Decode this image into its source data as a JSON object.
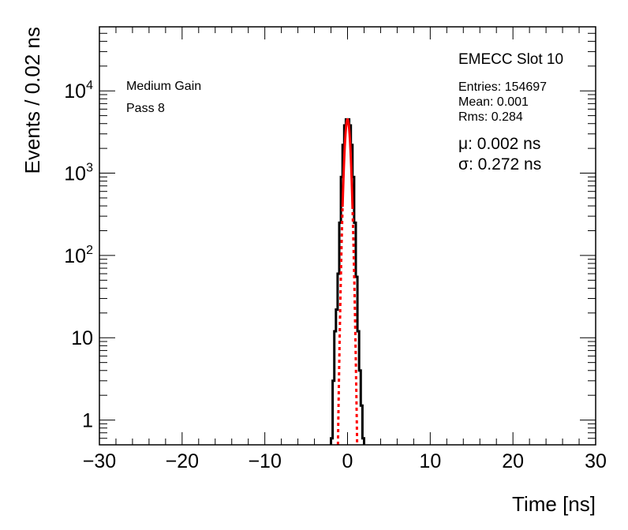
{
  "chart_data": {
    "type": "histogram",
    "xlabel": "Time [ns]",
    "ylabel": "Events / 0.02 ns",
    "xlim": [
      -30,
      30
    ],
    "ylim": [
      0.5,
      60000
    ],
    "yscale": "log",
    "x_ticks": [
      -30,
      -20,
      -10,
      0,
      10,
      20,
      30
    ],
    "x_tick_labels": [
      "−30",
      "−20",
      "−10",
      "0",
      "10",
      "20",
      "30"
    ],
    "y_ticks": [
      1,
      10,
      100,
      1000,
      10000
    ],
    "y_tick_labels": [
      {
        "base": "1",
        "exp": ""
      },
      {
        "base": "10",
        "exp": ""
      },
      {
        "base": "10",
        "exp": "2"
      },
      {
        "base": "10",
        "exp": "3"
      },
      {
        "base": "10",
        "exp": "4"
      }
    ],
    "grid": false,
    "annotations": {
      "left": [
        "Medium Gain",
        "Pass 8"
      ],
      "title": "EMECC Slot 10",
      "stats": [
        "Entries: 154697",
        "Mean: 0.001",
        "Rms: 0.284"
      ],
      "fit": [
        "μ: 0.002 ns",
        "σ: 0.272 ns"
      ]
    },
    "histogram": {
      "name": "data",
      "color": "#000000",
      "x": [
        -1.9,
        -1.7,
        -1.5,
        -1.3,
        -1.1,
        -0.9,
        -0.7,
        -0.5,
        -0.3,
        -0.1,
        0.1,
        0.3,
        0.5,
        0.7,
        0.9,
        1.1,
        1.3,
        1.5,
        1.7,
        1.9
      ],
      "y": [
        0.6,
        3,
        12,
        22,
        60,
        250,
        900,
        2200,
        3800,
        4500,
        4500,
        3800,
        2200,
        900,
        250,
        55,
        12,
        4,
        1.5,
        0.6
      ]
    },
    "fit_curve": {
      "name": "gaussian fit",
      "color": "#ff0000",
      "mean": 0.002,
      "sigma": 0.272,
      "amplitude": 4500,
      "fit_range": [
        -0.6,
        0.6
      ]
    }
  }
}
